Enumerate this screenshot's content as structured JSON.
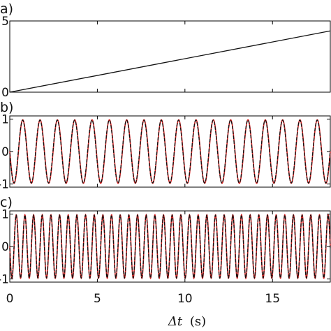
{
  "chart_data": [
    {
      "panel": "a)",
      "type": "line",
      "xlim": [
        0,
        18.3
      ],
      "ylim": [
        0,
        5
      ],
      "y_ticks": [
        0,
        5
      ],
      "y_tick_labels": [
        "0",
        "5"
      ],
      "series": [
        {
          "color": "#111111",
          "x": [
            0,
            18.3
          ],
          "y": [
            0,
            4.3
          ]
        }
      ]
    },
    {
      "panel": "b)",
      "type": "line",
      "xlim": [
        0,
        18.3
      ],
      "ylim": [
        -1.1,
        1.1
      ],
      "y_ticks": [
        -1,
        0,
        1
      ],
      "y_tick_labels": [
        "-1",
        "0",
        "1"
      ],
      "oscillation": {
        "amplitude": 0.98,
        "cycles_over_range": 18.5
      },
      "series": [
        {
          "color": "#d62020",
          "line": "solid"
        },
        {
          "color": "#111111",
          "line": "dashed"
        }
      ]
    },
    {
      "panel": "c)",
      "type": "line",
      "xlim": [
        0,
        18.3
      ],
      "ylim": [
        -1.1,
        1.1
      ],
      "y_ticks": [
        -1,
        0,
        1
      ],
      "y_tick_labels": [
        "-1",
        "0",
        "1"
      ],
      "oscillation": {
        "amplitude": 0.98,
        "cycles_over_range": 37
      },
      "series": [
        {
          "color": "#d62020",
          "line": "solid"
        },
        {
          "color": "#111111",
          "line": "dashed"
        }
      ]
    }
  ],
  "x_axis": {
    "ticks": [
      0,
      5,
      10,
      15
    ],
    "tick_labels": [
      "0",
      "5",
      "10",
      "15"
    ],
    "label_math": "Δt",
    "label_unit": "(s)"
  },
  "labels": {
    "a": "a)",
    "b": "b)",
    "c": "c)"
  }
}
